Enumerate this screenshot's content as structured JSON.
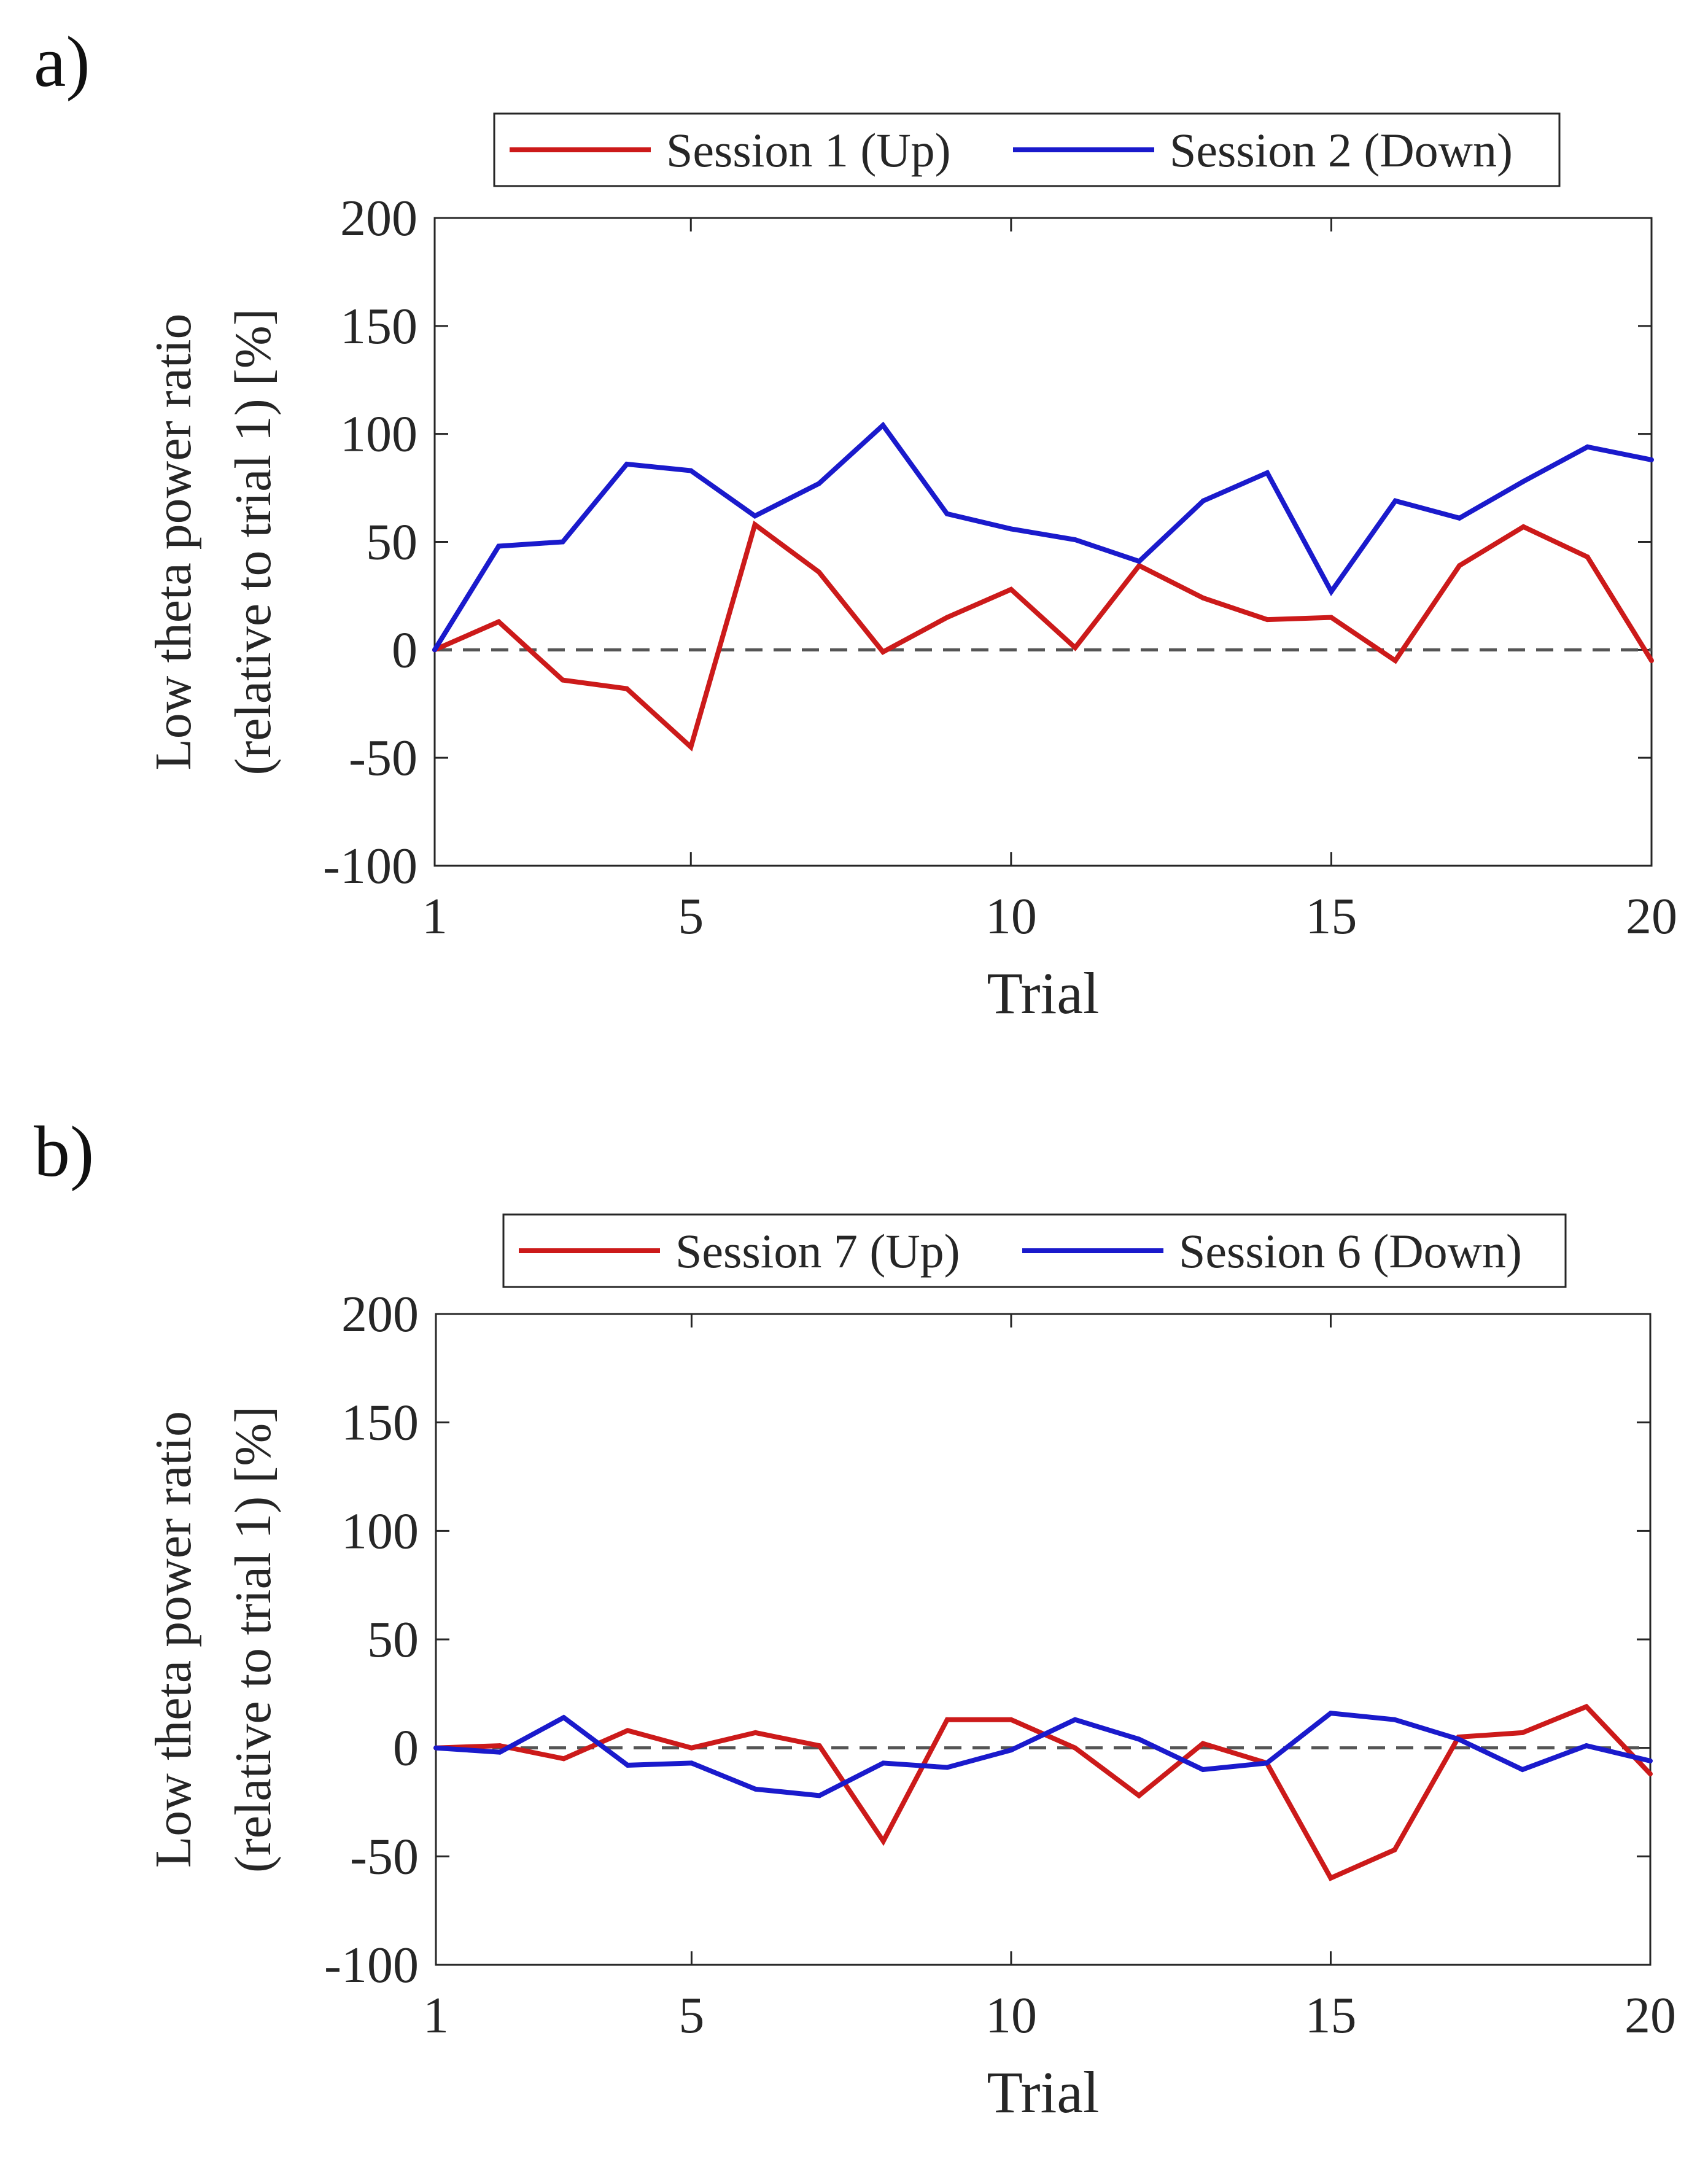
{
  "chart_data": [
    {
      "type": "line",
      "panel_label": "a)",
      "xlabel": "Trial",
      "ylabel_line1": "Low theta power ratio",
      "ylabel_line2": "(relative to trial 1) [%]",
      "xlim": [
        1,
        20
      ],
      "ylim": [
        -100,
        200
      ],
      "xticks": [
        1,
        5,
        10,
        15,
        20
      ],
      "yticks": [
        200,
        150,
        100,
        50,
        0,
        -50,
        -100
      ],
      "grid": false,
      "legend_position": "top, outside, horizontal",
      "reference_line": {
        "y": 0,
        "style": "dashed",
        "color": "#555555"
      },
      "x": [
        1,
        2,
        3,
        4,
        5,
        6,
        7,
        8,
        9,
        10,
        11,
        12,
        13,
        14,
        15,
        16,
        17,
        18,
        19,
        20
      ],
      "series": [
        {
          "name": "Session 1 (Up)",
          "color": "#cc1a1a",
          "values": [
            0,
            13,
            -14,
            -18,
            -45,
            58,
            36,
            -1,
            15,
            28,
            1,
            39,
            24,
            14,
            15,
            -5,
            39,
            57,
            43,
            -5
          ]
        },
        {
          "name": "Session 2 (Down)",
          "color": "#1a1acc",
          "values": [
            0,
            48,
            50,
            86,
            83,
            62,
            77,
            104,
            63,
            56,
            51,
            41,
            69,
            82,
            27,
            69,
            61,
            78,
            94,
            88
          ]
        }
      ]
    },
    {
      "type": "line",
      "panel_label": "b)",
      "xlabel": "Trial",
      "ylabel_line1": "Low theta power ratio",
      "ylabel_line2": "(relative to trial 1) [%]",
      "xlim": [
        1,
        20
      ],
      "ylim": [
        -100,
        200
      ],
      "xticks": [
        1,
        5,
        10,
        15,
        20
      ],
      "yticks": [
        200,
        150,
        100,
        50,
        0,
        -50,
        -100
      ],
      "grid": false,
      "legend_position": "top, outside, horizontal",
      "reference_line": {
        "y": 0,
        "style": "dashed",
        "color": "#555555"
      },
      "x": [
        1,
        2,
        3,
        4,
        5,
        6,
        7,
        8,
        9,
        10,
        11,
        12,
        13,
        14,
        15,
        16,
        17,
        18,
        19,
        20
      ],
      "series": [
        {
          "name": "Session 7 (Up)",
          "color": "#cc1a1a",
          "values": [
            0,
            1,
            -5,
            8,
            0,
            7,
            1,
            -43,
            13,
            13,
            0,
            -22,
            2,
            -7,
            -60,
            -47,
            5,
            7,
            19,
            -12
          ]
        },
        {
          "name": "Session 6 (Down)",
          "color": "#1a1acc",
          "values": [
            0,
            -2,
            14,
            -8,
            -7,
            -19,
            -22,
            -7,
            -9,
            -1,
            13,
            4,
            -10,
            -7,
            16,
            13,
            4,
            -10,
            1,
            -6
          ]
        }
      ]
    }
  ]
}
